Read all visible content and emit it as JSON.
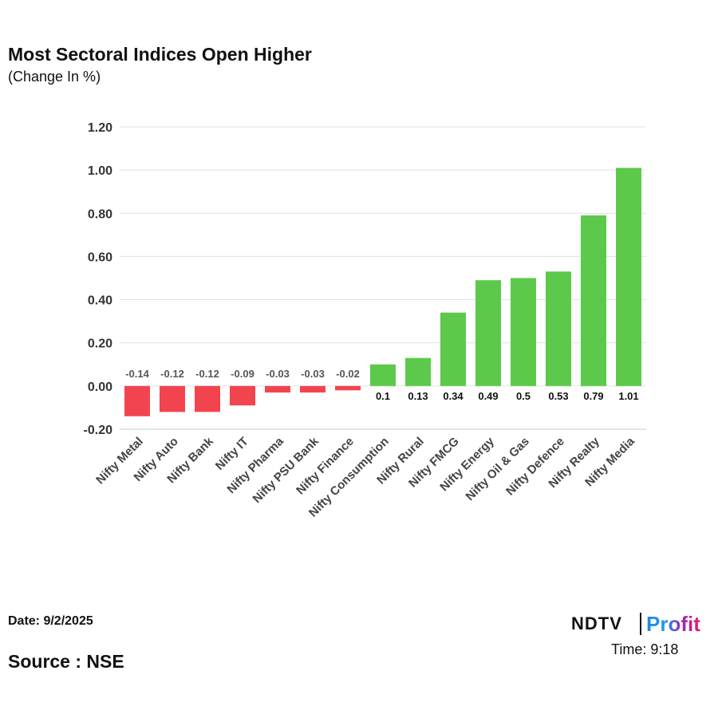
{
  "chart_data": {
    "type": "bar",
    "title": "Most Sectoral Indices Open Higher",
    "subtitle": "(Change In %)",
    "categories": [
      "Nifty Metal",
      "Nifty Auto",
      "Nifty Bank",
      "Nifty IT",
      "Nifty Pharma",
      "Nifty PSU Bank",
      "Nifty Finance",
      "Nifty Consumption",
      "Nifty Rural",
      "Nifty FMCG",
      "Nifty Energy",
      "Nifty Oil & Gas",
      "Nifty Defence",
      "Nifty Realty",
      "Nifty Media"
    ],
    "values": [
      -0.14,
      -0.12,
      -0.12,
      -0.09,
      -0.03,
      -0.03,
      -0.02,
      0.1,
      0.13,
      0.34,
      0.49,
      0.5,
      0.53,
      0.79,
      1.01
    ],
    "data_labels": [
      "-0.14",
      "-0.12",
      "-0.12",
      "-0.09",
      "-0.03",
      "-0.03",
      "-0.02",
      "0.1",
      "0.13",
      "0.34",
      "0.49",
      "0.5",
      "0.53",
      "0.79",
      "1.01"
    ],
    "yticks": [
      "-0.20",
      "0.00",
      "0.20",
      "0.40",
      "0.60",
      "0.80",
      "1.00",
      "1.20"
    ],
    "ylim": [
      -0.2,
      1.2
    ],
    "grid": true,
    "colors": {
      "positive": "#5cc94a",
      "negative": "#f2444f"
    }
  },
  "footer": {
    "date": "Date: 9/2/2025",
    "source": "Source : NSE",
    "logo_left": "NDTV",
    "logo_right": "Profit",
    "time": "Time: 9:18"
  }
}
